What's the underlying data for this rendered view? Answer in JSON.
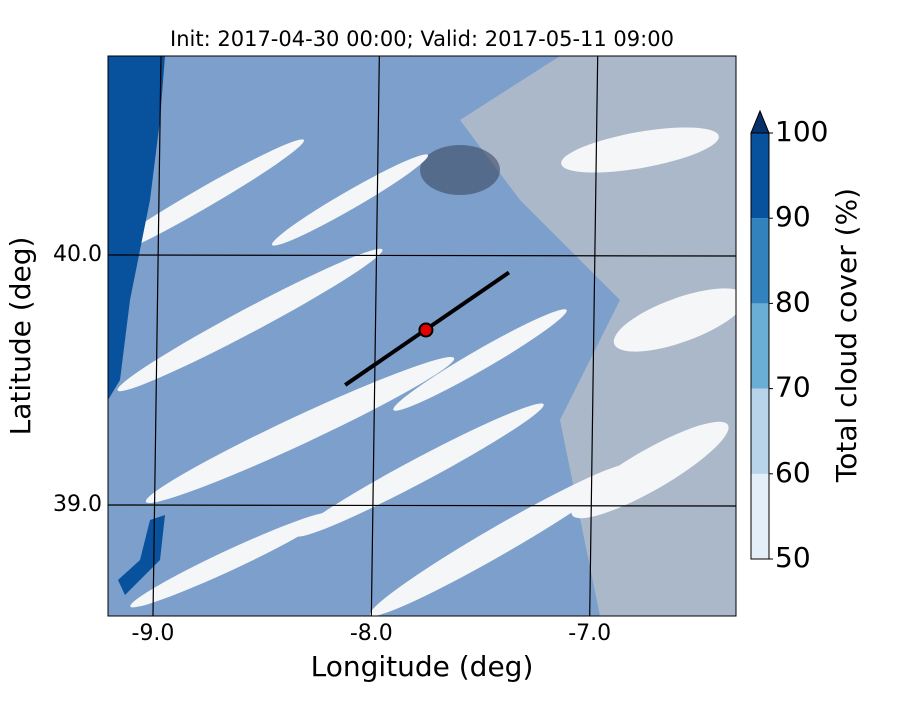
{
  "chart_data": {
    "type": "map",
    "title": "Init: 2017-04-30 00:00; Valid: 2017-05-11 09:00",
    "xlabel": "Longitude (deg)",
    "ylabel": "Latitude (deg)",
    "xlim": [
      -9.206,
      -6.33
    ],
    "ylim": [
      38.556,
      40.796
    ],
    "xticks": [
      {
        "value": -9,
        "label": "-9.0"
      },
      {
        "value": -8,
        "label": "-8.0"
      },
      {
        "value": -7,
        "label": "-7.0"
      }
    ],
    "yticks": [
      {
        "value": 39,
        "label": "39.0"
      },
      {
        "value": 40,
        "label": "40.0"
      }
    ],
    "grid": true,
    "colorbar": {
      "label": "Total cloud cover (%)",
      "levels": [
        50,
        60,
        70,
        80,
        90,
        100
      ],
      "colors": [
        "#e3eef9",
        "#b7d4ea",
        "#6aaed6",
        "#3182bd",
        "#08519c"
      ],
      "extend_color": "#08306b"
    },
    "transect": {
      "x": [
        -8.12,
        -7.37
      ],
      "y": [
        39.48,
        39.93
      ]
    },
    "marker": {
      "x": -7.75,
      "y": 39.7,
      "color": "#e00000"
    }
  }
}
